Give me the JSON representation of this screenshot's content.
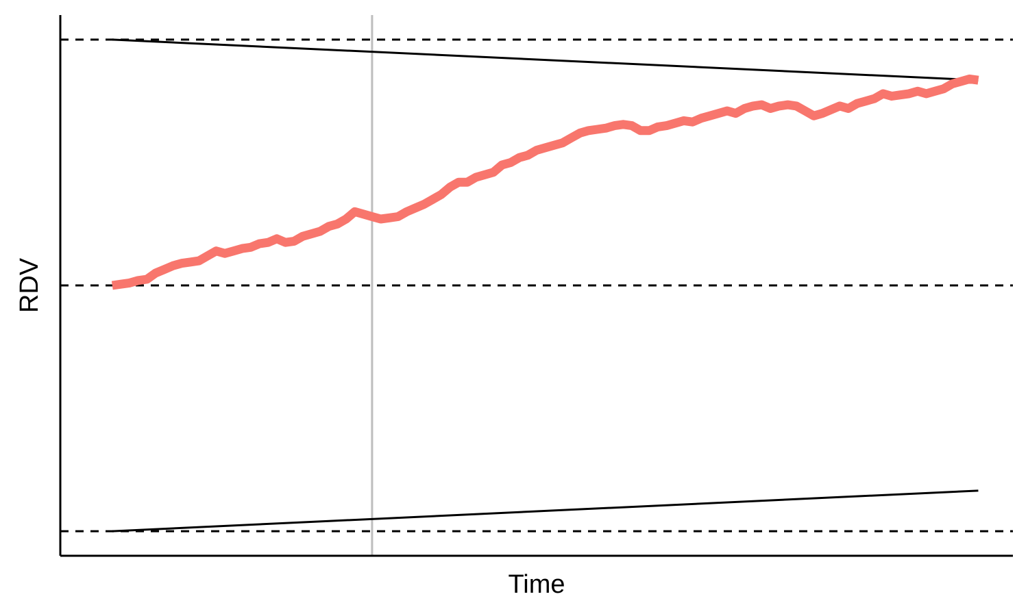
{
  "chart_data": {
    "type": "line",
    "xlabel": "Time",
    "ylabel": "RDV",
    "xlim": [
      -0.06,
      1.04
    ],
    "ylim": [
      -1.1,
      1.1
    ],
    "grid": false,
    "reference_lines": [
      1,
      0,
      -1
    ],
    "marker_x": 0.3,
    "bounds": {
      "upper": {
        "x": [
          0,
          1
        ],
        "y": [
          1,
          0.835
        ]
      },
      "lower": {
        "x": [
          0,
          1
        ],
        "y": [
          -1,
          -0.835
        ]
      }
    },
    "series": [
      {
        "color": "#F8766D",
        "x": [
          0,
          0.01,
          0.02,
          0.03,
          0.04,
          0.05,
          0.06,
          0.07,
          0.08,
          0.09,
          0.1,
          0.11,
          0.12,
          0.13,
          0.14,
          0.15,
          0.16,
          0.17,
          0.18,
          0.19,
          0.2,
          0.21,
          0.22,
          0.23,
          0.24,
          0.25,
          0.26,
          0.27,
          0.28,
          0.29,
          0.3,
          0.31,
          0.32,
          0.33,
          0.34,
          0.35,
          0.36,
          0.37,
          0.38,
          0.39,
          0.4,
          0.41,
          0.42,
          0.43,
          0.44,
          0.45,
          0.46,
          0.47,
          0.48,
          0.49,
          0.5,
          0.51,
          0.52,
          0.53,
          0.54,
          0.55,
          0.56,
          0.57,
          0.58,
          0.59,
          0.6,
          0.61,
          0.62,
          0.63,
          0.64,
          0.65,
          0.66,
          0.67,
          0.68,
          0.69,
          0.7,
          0.71,
          0.72,
          0.73,
          0.74,
          0.75,
          0.76,
          0.77,
          0.78,
          0.79,
          0.8,
          0.81,
          0.82,
          0.83,
          0.84,
          0.85,
          0.86,
          0.87,
          0.88,
          0.89,
          0.9,
          0.91,
          0.92,
          0.93,
          0.94,
          0.95,
          0.96,
          0.97,
          0.98,
          0.99,
          1.0
        ],
        "y": [
          0,
          0.005,
          0.01,
          0.02,
          0.025,
          0.05,
          0.065,
          0.08,
          0.09,
          0.095,
          0.1,
          0.12,
          0.14,
          0.13,
          0.14,
          0.15,
          0.155,
          0.17,
          0.175,
          0.19,
          0.175,
          0.18,
          0.2,
          0.21,
          0.22,
          0.24,
          0.25,
          0.27,
          0.3,
          0.29,
          0.28,
          0.27,
          0.275,
          0.28,
          0.3,
          0.315,
          0.33,
          0.35,
          0.37,
          0.4,
          0.42,
          0.42,
          0.44,
          0.45,
          0.46,
          0.49,
          0.5,
          0.52,
          0.53,
          0.55,
          0.56,
          0.57,
          0.58,
          0.6,
          0.62,
          0.63,
          0.635,
          0.64,
          0.65,
          0.655,
          0.65,
          0.63,
          0.63,
          0.645,
          0.65,
          0.66,
          0.67,
          0.665,
          0.68,
          0.69,
          0.7,
          0.71,
          0.7,
          0.72,
          0.73,
          0.735,
          0.72,
          0.73,
          0.735,
          0.73,
          0.71,
          0.69,
          0.7,
          0.715,
          0.73,
          0.72,
          0.74,
          0.75,
          0.76,
          0.78,
          0.77,
          0.775,
          0.78,
          0.79,
          0.78,
          0.79,
          0.8,
          0.82,
          0.83,
          0.84,
          0.835
        ]
      }
    ]
  }
}
